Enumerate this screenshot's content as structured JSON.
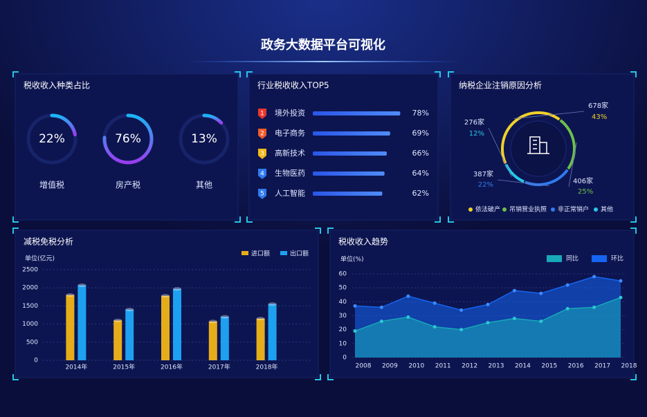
{
  "title": "政务大数据平台可视化",
  "chart_data": [
    {
      "type": "ring",
      "title": "税收收入种类占比",
      "categories": [
        "增值税",
        "房产税",
        "其他"
      ],
      "values": [
        22,
        76,
        13
      ],
      "value_labels": [
        "22%",
        "76%",
        "13%"
      ]
    },
    {
      "type": "rank",
      "title": "行业税收收入TOP5",
      "ranks": [
        "1",
        "2",
        "3",
        "4",
        "5"
      ],
      "rank_colors": [
        "#e8372e",
        "#ee5a2a",
        "#f2b91c",
        "#2f7bf0",
        "#2f7bf0"
      ],
      "categories": [
        "境外投资",
        "电子商务",
        "高新技术",
        "生物医药",
        "人工智能"
      ],
      "values": [
        78,
        69,
        66,
        64,
        62
      ],
      "value_labels": [
        "78%",
        "69%",
        "66%",
        "64%",
        "62%"
      ]
    },
    {
      "type": "donut",
      "title": "纳税企业注销原因分析",
      "categories": [
        "依法破产",
        "吊销营业执照",
        "非正常销户",
        "其他"
      ],
      "colors": [
        "#f0d12a",
        "#6cc04a",
        "#2f7bf0",
        "#27c6e6"
      ],
      "counts": [
        678,
        406,
        387,
        276
      ],
      "count_labels": [
        "678家",
        "406家",
        "387家",
        "276家"
      ],
      "values": [
        43,
        25,
        22,
        12
      ],
      "value_labels": [
        "43%",
        "25%",
        "22%",
        "12%"
      ]
    },
    {
      "type": "bar",
      "title": "减税免税分析",
      "y_label": "单位(亿元)",
      "categories": [
        "2014年",
        "2015年",
        "2016年",
        "2017年",
        "2018年"
      ],
      "series": [
        {
          "name": "进口额",
          "color": "#e6ad1a",
          "values": [
            1800,
            1100,
            1780,
            1070,
            1150
          ]
        },
        {
          "name": "出口额",
          "color": "#1ea0f0",
          "values": [
            2070,
            1400,
            1970,
            1200,
            1550
          ]
        }
      ],
      "ylim": [
        0,
        2500
      ],
      "yticks": [
        0,
        500,
        1000,
        1500,
        2000,
        2500
      ],
      "grid": true
    },
    {
      "type": "area",
      "title": "税收收入趋势",
      "y_label": "单位(%)",
      "categories": [
        "2008",
        "2009",
        "2010",
        "2011",
        "2012",
        "2013",
        "2014",
        "2015",
        "2016",
        "2017",
        "2018"
      ],
      "series": [
        {
          "name": "同比",
          "color": "#17a9b8",
          "values": [
            19,
            26,
            29,
            22,
            20,
            25,
            28,
            26,
            35,
            36,
            43
          ]
        },
        {
          "name": "环比",
          "color": "#1565f0",
          "values": [
            37,
            36,
            44,
            39,
            34,
            38,
            48,
            46,
            52,
            58,
            55
          ]
        }
      ],
      "ylim": [
        0,
        60
      ],
      "yticks": [
        0,
        10,
        20,
        30,
        40,
        50,
        60
      ],
      "grid": true
    }
  ]
}
